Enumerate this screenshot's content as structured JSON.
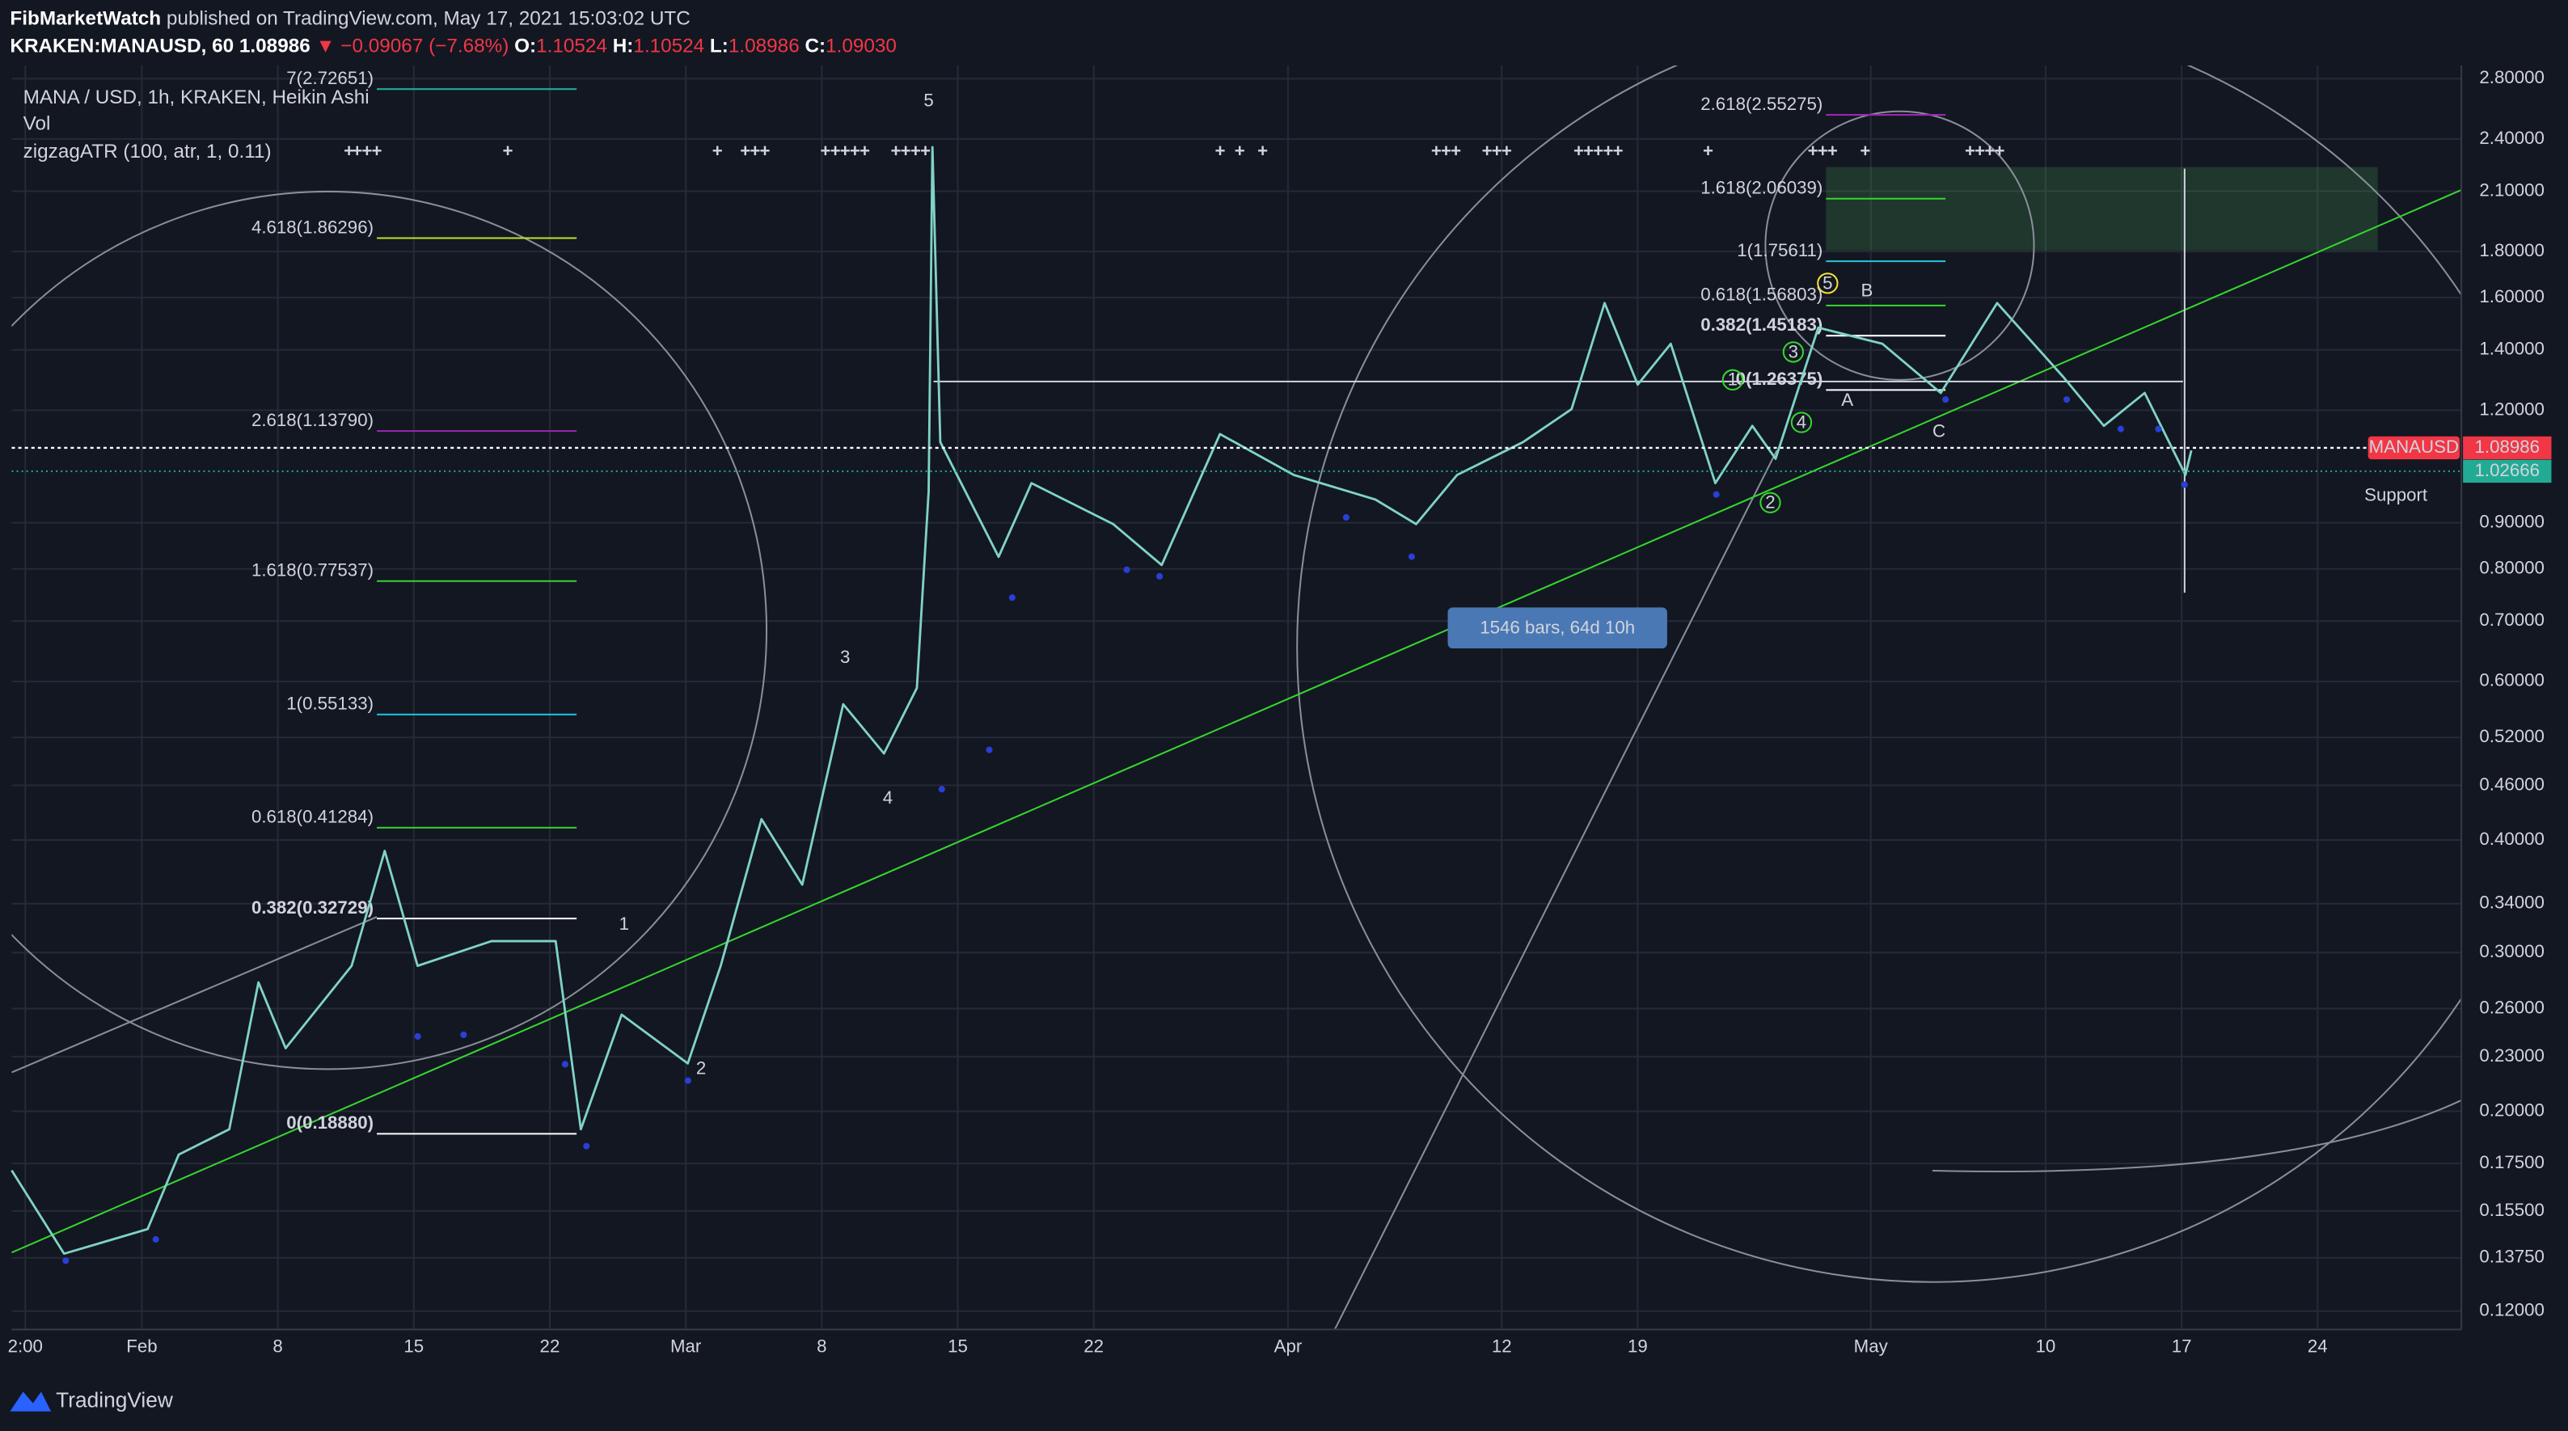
{
  "header": {
    "publisher": "FibMarketWatch",
    "published": "published on TradingView.com, May 17, 2021 15:03:02 UTC",
    "symbol": "KRAKEN:MANAUSD, 60",
    "last": "1.08986",
    "change": "▼ −0.09067 (−7.68%)",
    "ohlc": [
      {
        "key": "O:",
        "value": "1.10524"
      },
      {
        "key": "H:",
        "value": "1.10524"
      },
      {
        "key": "L:",
        "value": "1.08986"
      },
      {
        "key": "C:",
        "value": "1.09030"
      }
    ]
  },
  "legend": [
    "MANA / USD, 1h, KRAKEN, Heikin Ashi",
    "Vol",
    "zigzagATR (100, atr, 1, 0.11)"
  ],
  "chart_data": {
    "type": "line",
    "log_scale": true,
    "grid": true,
    "x": [
      -6.7,
      -4.0,
      0.3,
      1.9,
      4.5,
      6.0,
      7.4,
      10.8,
      12.5,
      14.2,
      18.0,
      21.3,
      22.6,
      24.7,
      28.1,
      29.8,
      31.9,
      34.0,
      36.1,
      38.2,
      39.9,
      40.5,
      40.7,
      41.1,
      44.1,
      45.8,
      50.0,
      52.5,
      55.5,
      59.3,
      63.5,
      65.6,
      67.7,
      71.1,
      73.6,
      75.3,
      77.0,
      78.7,
      81.0,
      82.9,
      84.1,
      86.3,
      89.6,
      92.6,
      95.5,
      98.9,
      101.0,
      103.1,
      105.2,
      105.5
    ],
    "series": [
      {
        "name": "MANAUSD",
        "color": "#7fd3c6",
        "values": [
          0.172,
          0.139,
          0.148,
          0.179,
          0.191,
          0.278,
          0.235,
          0.29,
          0.389,
          0.29,
          0.309,
          0.309,
          0.191,
          0.256,
          0.226,
          0.29,
          0.422,
          0.357,
          0.566,
          0.499,
          0.59,
          0.976,
          2.35,
          1.106,
          0.825,
          0.996,
          0.897,
          0.808,
          1.129,
          1.017,
          0.955,
          0.897,
          1.017,
          1.106,
          1.203,
          1.578,
          1.281,
          1.422,
          0.996,
          1.153,
          1.06,
          1.482,
          1.422,
          1.254,
          1.578,
          1.307,
          1.153,
          1.254,
          1.017,
          1.083
        ]
      }
    ],
    "xlim": [
      -6.7,
      119.4
    ],
    "xticks": [
      {
        "value": -6,
        "label": "2:00"
      },
      {
        "value": 0,
        "label": "Feb"
      },
      {
        "value": 7,
        "label": "8"
      },
      {
        "value": 14,
        "label": "15"
      },
      {
        "value": 21,
        "label": "22"
      },
      {
        "value": 28,
        "label": "Mar"
      },
      {
        "value": 35,
        "label": "8"
      },
      {
        "value": 42,
        "label": "15"
      },
      {
        "value": 49,
        "label": "22"
      },
      {
        "value": 59,
        "label": "Apr"
      },
      {
        "value": 70,
        "label": "12"
      },
      {
        "value": 77,
        "label": "19"
      },
      {
        "value": 89,
        "label": "May"
      },
      {
        "value": 98,
        "label": "10"
      },
      {
        "value": 105,
        "label": "17"
      },
      {
        "value": 112,
        "label": "24"
      }
    ],
    "ylim": [
      0.1145,
      2.896
    ],
    "yticks": [
      {
        "value": 2.8,
        "label": "2.80000"
      },
      {
        "value": 2.4,
        "label": "2.40000"
      },
      {
        "value": 2.1,
        "label": "2.10000"
      },
      {
        "value": 1.8,
        "label": "1.80000"
      },
      {
        "value": 1.6,
        "label": "1.60000"
      },
      {
        "value": 1.4,
        "label": "1.40000"
      },
      {
        "value": 1.2,
        "label": "1.20000"
      },
      {
        "value": 0.9,
        "label": "0.90000"
      },
      {
        "value": 0.8,
        "label": "0.80000"
      },
      {
        "value": 0.7,
        "label": "0.70000"
      },
      {
        "value": 0.6,
        "label": "0.60000"
      },
      {
        "value": 0.52,
        "label": "0.52000"
      },
      {
        "value": 0.46,
        "label": "0.46000"
      },
      {
        "value": 0.4,
        "label": "0.40000"
      },
      {
        "value": 0.34,
        "label": "0.34000"
      },
      {
        "value": 0.3,
        "label": "0.30000"
      },
      {
        "value": 0.26,
        "label": "0.26000"
      },
      {
        "value": 0.23,
        "label": "0.23000"
      },
      {
        "value": 0.2,
        "label": "0.20000"
      },
      {
        "value": 0.175,
        "label": "0.17500"
      },
      {
        "value": 0.155,
        "label": "0.15500"
      },
      {
        "value": 0.1375,
        "label": "0.13750"
      },
      {
        "value": 0.12,
        "label": "0.12000"
      }
    ],
    "last_price": {
      "name": "MANAUSD",
      "value": 1.08986,
      "color": "#f23645"
    },
    "support_price": {
      "value": 1.02666,
      "color": "#22ab94"
    },
    "fib_left": [
      {
        "value": 2.72651,
        "label": "7(2.72651)",
        "color": "#22ab94"
      },
      {
        "value": 1.86296,
        "label": "4.618(1.86296)",
        "color": "#c0e02a"
      },
      {
        "value": 1.1379,
        "label": "2.618(1.13790)",
        "color": "#9c27b0"
      },
      {
        "value": 0.77537,
        "label": "1.618(0.77537)",
        "color": "#36d62f"
      },
      {
        "value": 0.55133,
        "label": "1(0.55133)",
        "color": "#22c6e0"
      },
      {
        "value": 0.41284,
        "label": "0.618(0.41284)",
        "color": "#36d62f"
      },
      {
        "value": 0.32729,
        "label": "0.382(0.32729)",
        "color": "#ffffff"
      },
      {
        "value": 0.1888,
        "label": "0(0.18880)",
        "color": "#ffffff"
      }
    ],
    "fib_right": [
      {
        "value": 2.55275,
        "label": "2.618(2.55275)",
        "color": "#9c27b0"
      },
      {
        "value": 2.06039,
        "label": "1.618(2.06039)",
        "color": "#36d62f"
      },
      {
        "value": 1.75611,
        "label": "1(1.75611)",
        "color": "#22c6e0"
      },
      {
        "value": 1.56803,
        "label": "0.618(1.56803)",
        "color": "#36d62f"
      },
      {
        "value": 1.45183,
        "label": "0.382(1.45183)",
        "color": "#ffffff"
      },
      {
        "value": 1.26375,
        "label": "0(1.26375)",
        "color": "#ffffff"
      }
    ],
    "waves": [
      "1",
      "2",
      "3",
      "4",
      "5"
    ],
    "corrective": [
      "A",
      "B",
      "C"
    ],
    "subwaves": [
      "1",
      "2",
      "3",
      "4",
      "5"
    ],
    "annotations": {
      "support": "Support",
      "measure": "1546 bars, 64d 10h"
    }
  },
  "footer": {
    "brand": "TradingView"
  }
}
